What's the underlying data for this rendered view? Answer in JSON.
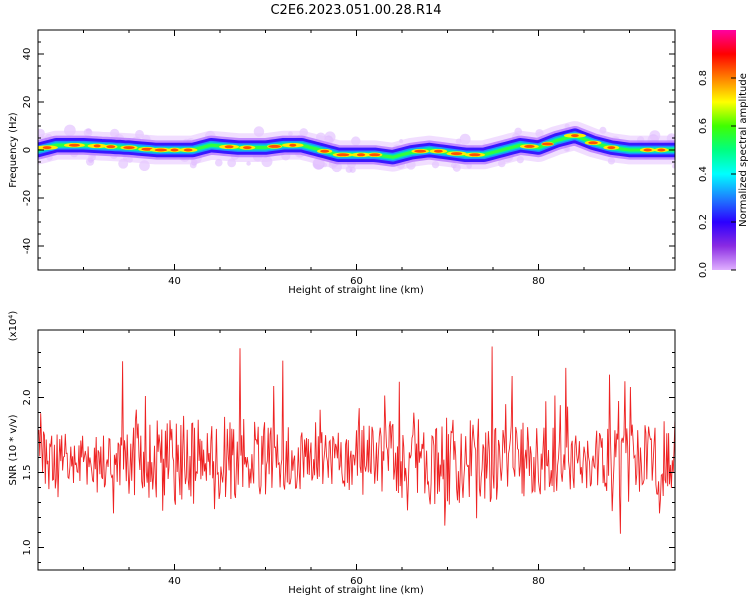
{
  "title": "C2E6.2023.051.00.28.R14",
  "chart_data": [
    {
      "type": "heatmap",
      "xlabel": "Height of straight line (km)",
      "ylabel": "Frequency (Hz)",
      "xlim": [
        25,
        95
      ],
      "ylim": [
        -50,
        50
      ],
      "x_ticks": [
        40,
        60,
        80
      ],
      "y_ticks": [
        40,
        20,
        0,
        -20,
        -40
      ],
      "ridge": {
        "x": [
          25,
          27,
          30,
          35,
          38,
          42,
          44,
          47,
          50,
          52,
          54,
          56,
          58,
          60,
          62,
          64,
          66,
          68,
          70,
          72,
          74,
          76,
          78,
          80,
          82,
          84,
          86,
          88,
          90,
          92,
          95
        ],
        "y": [
          0,
          2,
          2,
          1,
          0,
          0,
          2,
          1,
          1,
          2,
          2,
          0,
          -2,
          -2,
          -2,
          -3,
          -1,
          0,
          -1,
          -2,
          -2,
          0,
          2,
          1,
          4,
          6,
          3,
          1,
          0,
          0,
          0
        ]
      },
      "colorbar": {
        "label": "Normalized spectral amplitude",
        "range": [
          0,
          1
        ],
        "ticks": [
          "0.0",
          "0.2",
          "0.4",
          "0.6",
          "0.8"
        ],
        "colors": [
          "#ffffff",
          "#e0b0ff",
          "#8a2be2",
          "#2b00ff",
          "#1d80ff",
          "#00ffff",
          "#00ff80",
          "#40ff00",
          "#ffff00",
          "#ff8000",
          "#ff0000",
          "#ff00a0"
        ]
      }
    },
    {
      "type": "line",
      "xlabel": "Height of straight line (km)",
      "ylabel": "SNR (10 * v/v)",
      "y_multiplier": "(x10⁴)",
      "xlim": [
        25,
        95
      ],
      "ylim": [
        0.85,
        2.45
      ],
      "x_ticks": [
        40,
        60,
        80
      ],
      "y_ticks": [
        "1.0",
        "1.5",
        "2.0"
      ],
      "y_tick_values": [
        1.0,
        1.5,
        2.0
      ],
      "series": [
        {
          "color": "#ee2222",
          "x_start": 25,
          "x_step": 0.1,
          "values_note": "dense noisy series around 1.6"
        }
      ]
    }
  ]
}
